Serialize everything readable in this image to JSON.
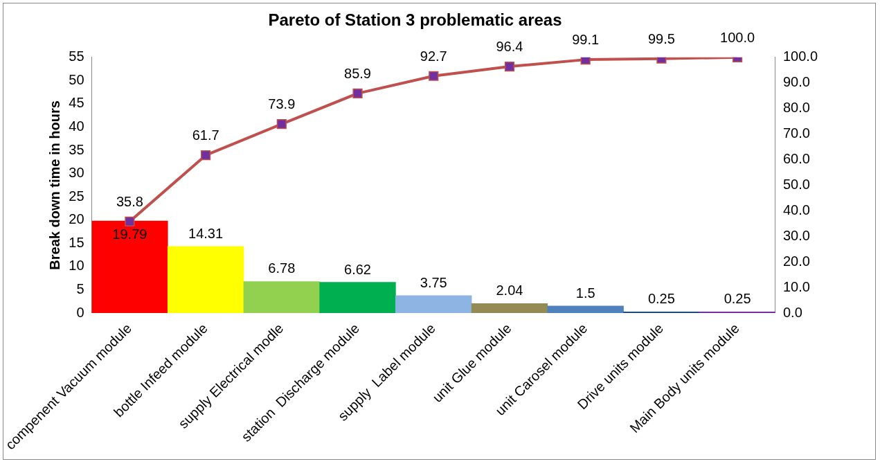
{
  "chart_data": {
    "type": "bar",
    "title": "Pareto of Station 3 problematic areas",
    "ylabel": "Break down time in hours",
    "categories": [
      "compenent Vacuum module",
      "bottle Infeed module",
      "supply Electrical modle",
      "station  Discharge module",
      "supply  Label module",
      "unit Glue module",
      "unit Carosel module",
      "Drive units module",
      "Main Body units module"
    ],
    "series": [
      {
        "colors": [
          "#ff0000",
          "#ffff00",
          "#92d050",
          "#00b050",
          "#8db4e2",
          "#948a54",
          "#4f81bd",
          "#1f497d",
          "#7030a0"
        ],
        "values": [
          19.79,
          14.31,
          6.78,
          6.62,
          3.75,
          2.04,
          1.5,
          0.25,
          0.25
        ],
        "value_labels": [
          "19.79",
          "14.31",
          "6.78",
          "6.62",
          "3.75",
          "2.04",
          "1.5",
          "0.25",
          "0.25"
        ]
      },
      {
        "type": "line",
        "axis": "y2",
        "color": "#c0504d",
        "marker": "square",
        "values": [
          35.8,
          61.7,
          73.9,
          85.9,
          92.7,
          96.4,
          99.1,
          99.5,
          100.0
        ],
        "value_labels": [
          "35.8",
          "61.7",
          "73.9",
          "85.9",
          "92.7",
          "96.4",
          "99.1",
          "99.5",
          "100.0"
        ]
      }
    ],
    "ylim": [
      0,
      55
    ],
    "yticks": [
      0,
      5,
      10,
      15,
      20,
      25,
      30,
      35,
      40,
      45,
      50,
      55
    ],
    "y2lim": [
      0,
      100
    ],
    "y2ticks": [
      {
        "value": 0,
        "label": "0.0"
      },
      {
        "value": 10,
        "label": "10.0"
      },
      {
        "value": 20,
        "label": "20.0"
      },
      {
        "value": 30,
        "label": "30.0"
      },
      {
        "value": 40,
        "label": "40.0"
      },
      {
        "value": 50,
        "label": "50.0"
      },
      {
        "value": 60,
        "label": "60.0"
      },
      {
        "value": 70,
        "label": "70.0"
      },
      {
        "value": 80,
        "label": "80.0"
      },
      {
        "value": 90,
        "label": "90.0"
      },
      {
        "value": 100,
        "label": "100.0"
      }
    ],
    "grid": false,
    "legend": false
  }
}
